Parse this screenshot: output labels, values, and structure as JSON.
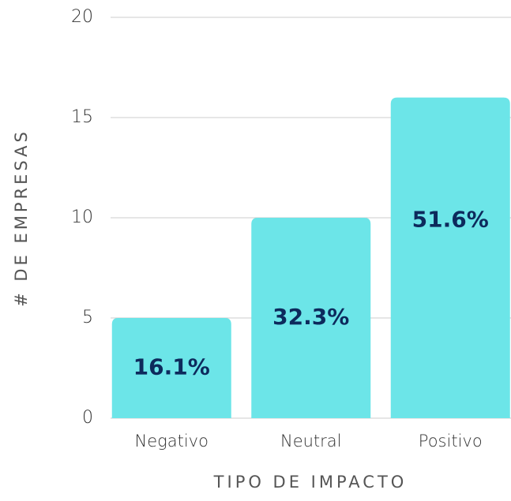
{
  "chart_data": {
    "type": "bar",
    "categories": [
      "Negativo",
      "Neutral",
      "Positivo"
    ],
    "values": [
      5,
      10,
      16
    ],
    "annotations": [
      "16.1%",
      "32.3%",
      "51.6%"
    ],
    "color": "#6ce5e8",
    "xlabel": "TIPO DE IMPACTO",
    "ylabel": "# DE EMPRESAS",
    "ylim": [
      0,
      20
    ],
    "yticks": [
      0,
      5,
      10,
      15,
      20
    ],
    "grid": true
  }
}
